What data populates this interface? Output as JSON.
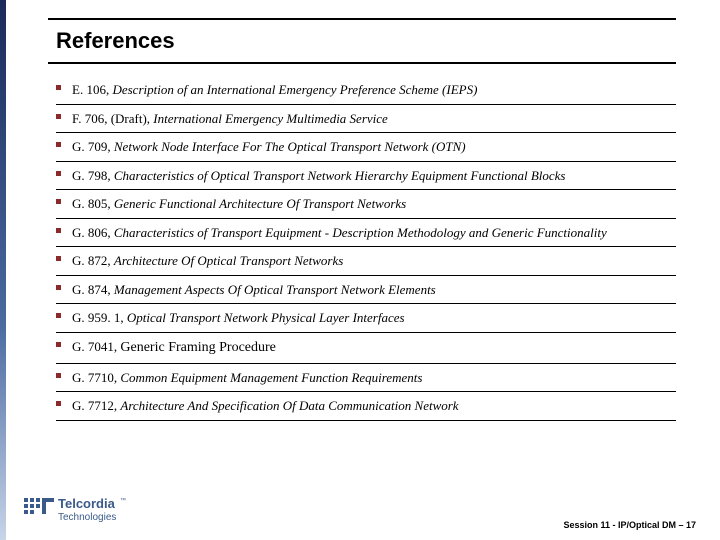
{
  "title": "References",
  "references": [
    {
      "code": "E. 106, ",
      "text": "Description of an International Emergency Preference Scheme (IEPS)"
    },
    {
      "code": "F. 706, (Draft), ",
      "text": "International Emergency Multimedia Service"
    },
    {
      "code": "G. 709, ",
      "text": "Network Node Interface For The Optical Transport Network (OTN)"
    },
    {
      "code": "G. 798, ",
      "text": "Characteristics of Optical Transport Network Hierarchy Equipment Functional Blocks"
    },
    {
      "code": "G. 805, ",
      "text": "Generic Functional Architecture Of Transport Networks"
    },
    {
      "code": "G. 806, ",
      "text": "Characteristics of Transport Equipment - Description Methodology and Generic Functionality"
    },
    {
      "code": "G. 872, ",
      "text": "Architecture Of Optical Transport Networks"
    },
    {
      "code": "G. 874, ",
      "text": "Management Aspects Of Optical Transport Network Elements"
    },
    {
      "code": "G. 959. 1, ",
      "text": "Optical Transport Network Physical Layer Interfaces"
    },
    {
      "code": "G. 7041, ",
      "text": "Generic Framing Procedure",
      "big": true
    },
    {
      "code": "G. 7710, ",
      "text": "Common Equipment Management Function Requirements"
    },
    {
      "code": "G. 7712, ",
      "text": "Architecture And Specification Of Data Communication Network"
    }
  ],
  "logo": {
    "top": "Telcordia",
    "tm": "™",
    "bottom": "Technologies"
  },
  "footer": "Session 11 - IP/Optical DM  –  17",
  "colors": {
    "bullet": "#8a2a2a",
    "rule": "#000000",
    "stripe_top": "#1a2a5a",
    "stripe_mid": "#4a6aa0",
    "stripe_bot": "#c8d4e8"
  }
}
